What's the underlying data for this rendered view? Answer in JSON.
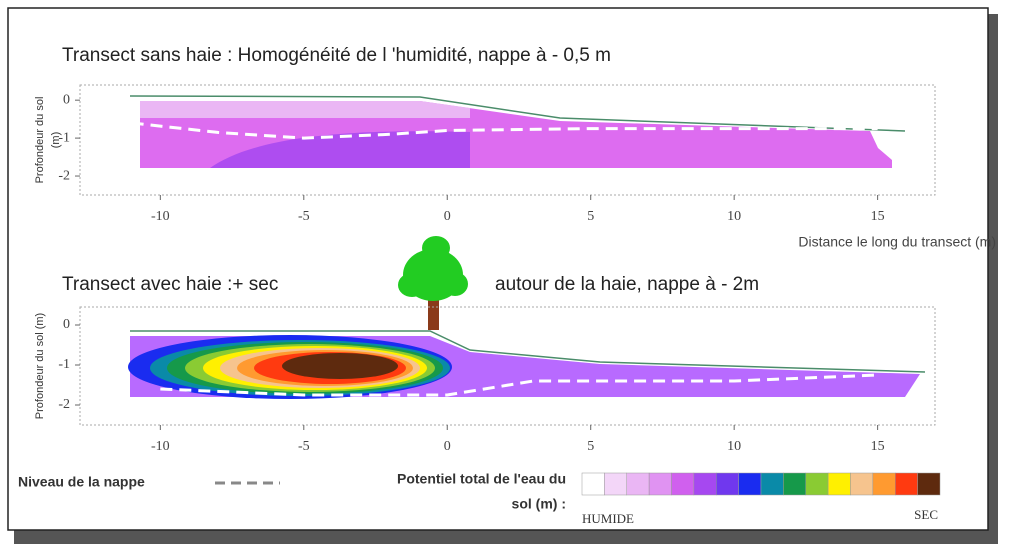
{
  "chart_data": [
    {
      "type": "line",
      "title": [
        "Transect sans haie : Homogénéité de l 'humidité, nappe à - 0,5 m"
      ],
      "x_label": "Distance le long du transect (m)",
      "y_label": [
        "Profondeur du sol",
        "(m)"
      ],
      "xlim": [
        -12.8,
        17
      ],
      "xticks": [
        -10,
        -5,
        0,
        5,
        10,
        15
      ],
      "ylim": [
        -2.5,
        0.4
      ],
      "yticks": [
        0,
        -1,
        -2
      ],
      "series": [
        {
          "name": "Niveau de la nappe",
          "color": "#ffffff",
          "x": [
            -11,
            -8,
            -5,
            -2,
            0,
            5,
            10,
            15
          ],
          "values": [
            -0.6,
            -0.85,
            -1.0,
            -0.9,
            -0.8,
            -0.75,
            -0.75,
            -0.75
          ]
        }
      ]
    },
    {
      "type": "line",
      "title": [
        "Transect avec  haie :+ sec",
        "autour de la haie, nappe à - 2m"
      ],
      "y_label": [
        "Profondeur du sol (m)"
      ],
      "xlim": [
        -12.8,
        17
      ],
      "xticks": [
        -10,
        -5,
        0,
        5,
        10,
        15
      ],
      "ylim": [
        -2.5,
        0.45
      ],
      "yticks": [
        0,
        -1,
        -2
      ],
      "series": [
        {
          "name": "Niveau de la nappe",
          "color": "#ffffff",
          "x": [
            -10,
            -5,
            0,
            3,
            10,
            15
          ],
          "values": [
            -1.6,
            -1.75,
            -1.75,
            -1.4,
            -1.4,
            -1.25
          ]
        }
      ]
    }
  ],
  "legend": {
    "title_lines": [
      "Potentiel total de l'eau du",
      "sol (m) :"
    ],
    "low_label": "HUMIDE",
    "high_label": "SEC",
    "colors": [
      "#ffffff",
      "#f3d6f8",
      "#eab6f4",
      "#e093f2",
      "#d060ee",
      "#a648f0",
      "#7038ee",
      "#1a2cf0",
      "#0a8aa8",
      "#16994a",
      "#8acb33",
      "#fff000",
      "#f6c48e",
      "#ff9a30",
      "#ff3a10",
      "#5e2a0e"
    ]
  }
}
